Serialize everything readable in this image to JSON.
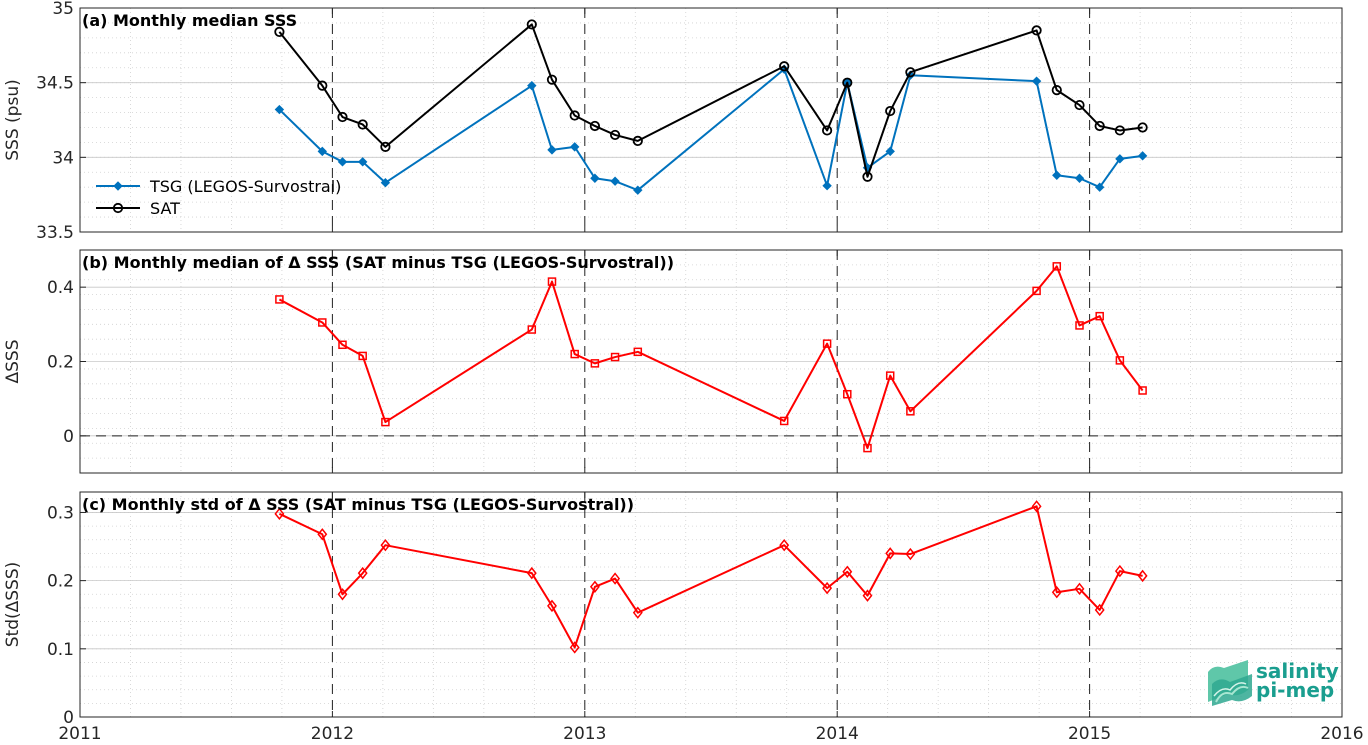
{
  "chart_data": [
    {
      "type": "line",
      "title": "(a) Monthly median SSS",
      "ylabel": "SSS (psu)",
      "xlim": [
        2011,
        2016
      ],
      "ylim": [
        33.5,
        35
      ],
      "yticks": [
        33.5,
        34,
        34.5,
        35
      ],
      "ytick_labels": [
        "33.5",
        "34",
        "34.5",
        "35"
      ],
      "grid": true,
      "legend_placement": "bottom-left",
      "x": [
        2011.79,
        2011.96,
        2012.04,
        2012.12,
        2012.21,
        2012.79,
        2012.87,
        2012.96,
        2013.04,
        2013.12,
        2013.21,
        2013.79,
        2013.96,
        2014.04,
        2014.12,
        2014.21,
        2014.29,
        2014.79,
        2014.87,
        2014.96,
        2015.04,
        2015.12,
        2015.21
      ],
      "series": [
        {
          "name": "TSG (LEGOS-Survostral)",
          "color": "#0072bd",
          "marker": "diamond-filled",
          "x": [
            2011.79,
            2011.96,
            2012.04,
            2012.12,
            2012.21,
            2012.79,
            2012.87,
            2012.96,
            2013.04,
            2013.12,
            2013.21,
            2013.79,
            2013.96,
            2014.04,
            2014.12,
            2014.21,
            2014.29,
            2014.79,
            2014.87,
            2014.96,
            2015.04,
            2015.12,
            2015.21
          ],
          "values": [
            34.32,
            34.04,
            33.97,
            33.97,
            33.83,
            34.48,
            34.05,
            34.07,
            33.86,
            33.84,
            33.78,
            34.59,
            33.81,
            34.5,
            33.93,
            34.04,
            34.55,
            34.51,
            33.88,
            33.86,
            33.8,
            33.99,
            34.01
          ]
        },
        {
          "name": "SAT",
          "color": "#000000",
          "marker": "circle-open",
          "x": [
            2011.79,
            2011.96,
            2012.04,
            2012.12,
            2012.21,
            2012.79,
            2012.87,
            2012.96,
            2013.04,
            2013.12,
            2013.21,
            2013.79,
            2013.96,
            2014.04,
            2014.12,
            2014.21,
            2014.29,
            2014.79,
            2014.87,
            2014.96,
            2015.04,
            2015.12,
            2015.21
          ],
          "values": [
            34.84,
            34.48,
            34.27,
            34.22,
            34.07,
            34.89,
            34.52,
            34.28,
            34.21,
            34.15,
            34.11,
            34.61,
            34.18,
            34.5,
            33.87,
            34.31,
            34.57,
            34.85,
            34.45,
            34.35,
            34.21,
            34.18,
            34.2
          ]
        }
      ]
    },
    {
      "type": "line",
      "title": "(b) Monthly median of Δ SSS (SAT minus TSG (LEGOS-Survostral))",
      "ylabel": "ΔSSS",
      "xlim": [
        2011,
        2016
      ],
      "ylim": [
        -0.1,
        0.5
      ],
      "yticks": [
        0,
        0.2,
        0.4
      ],
      "ytick_labels": [
        "0",
        "0.2",
        "0.4"
      ],
      "grid": true,
      "zero_reference_line": true,
      "series": [
        {
          "color": "#ff0000",
          "marker": "square-open",
          "x": [
            2011.79,
            2011.96,
            2012.04,
            2012.12,
            2012.21,
            2012.79,
            2012.87,
            2012.96,
            2013.04,
            2013.12,
            2013.21,
            2013.79,
            2013.96,
            2014.04,
            2014.12,
            2014.21,
            2014.29,
            2014.79,
            2014.87,
            2014.96,
            2015.04,
            2015.12,
            2015.21
          ],
          "values": [
            0.367,
            0.305,
            0.245,
            0.215,
            0.037,
            0.286,
            0.415,
            0.22,
            0.195,
            0.212,
            0.226,
            0.04,
            0.248,
            0.112,
            -0.033,
            0.162,
            0.066,
            0.39,
            0.456,
            0.297,
            0.322,
            0.203,
            0.122
          ]
        }
      ]
    },
    {
      "type": "line",
      "title": "(c) Monthly std of Δ SSS (SAT minus TSG (LEGOS-Survostral))",
      "ylabel": "Std(ΔSSS)",
      "xlim": [
        2011,
        2016
      ],
      "ylim": [
        0,
        0.33
      ],
      "yticks": [
        0,
        0.1,
        0.2,
        0.3
      ],
      "ytick_labels": [
        "0",
        "0.1",
        "0.2",
        "0.3"
      ],
      "xticks": [
        2011,
        2012,
        2013,
        2014,
        2015,
        2016
      ],
      "xtick_labels": [
        "2011",
        "2012",
        "2013",
        "2014",
        "2015",
        "2016"
      ],
      "grid": true,
      "series": [
        {
          "color": "#ff0000",
          "marker": "diamond-open",
          "x": [
            2011.79,
            2011.96,
            2012.04,
            2012.12,
            2012.21,
            2012.79,
            2012.87,
            2012.96,
            2013.04,
            2013.12,
            2013.21,
            2013.79,
            2013.96,
            2014.04,
            2014.12,
            2014.21,
            2014.29,
            2014.79,
            2014.87,
            2014.96,
            2015.04,
            2015.12,
            2015.21
          ],
          "values": [
            0.298,
            0.268,
            0.18,
            0.211,
            0.252,
            0.211,
            0.163,
            0.102,
            0.191,
            0.203,
            0.153,
            0.252,
            0.189,
            0.213,
            0.178,
            0.24,
            0.239,
            0.309,
            0.183,
            0.188,
            0.157,
            0.214,
            0.207
          ]
        }
      ]
    }
  ],
  "logo": {
    "line1": "salinity",
    "line2": "pi-mep",
    "color": "#1a9e8f"
  }
}
